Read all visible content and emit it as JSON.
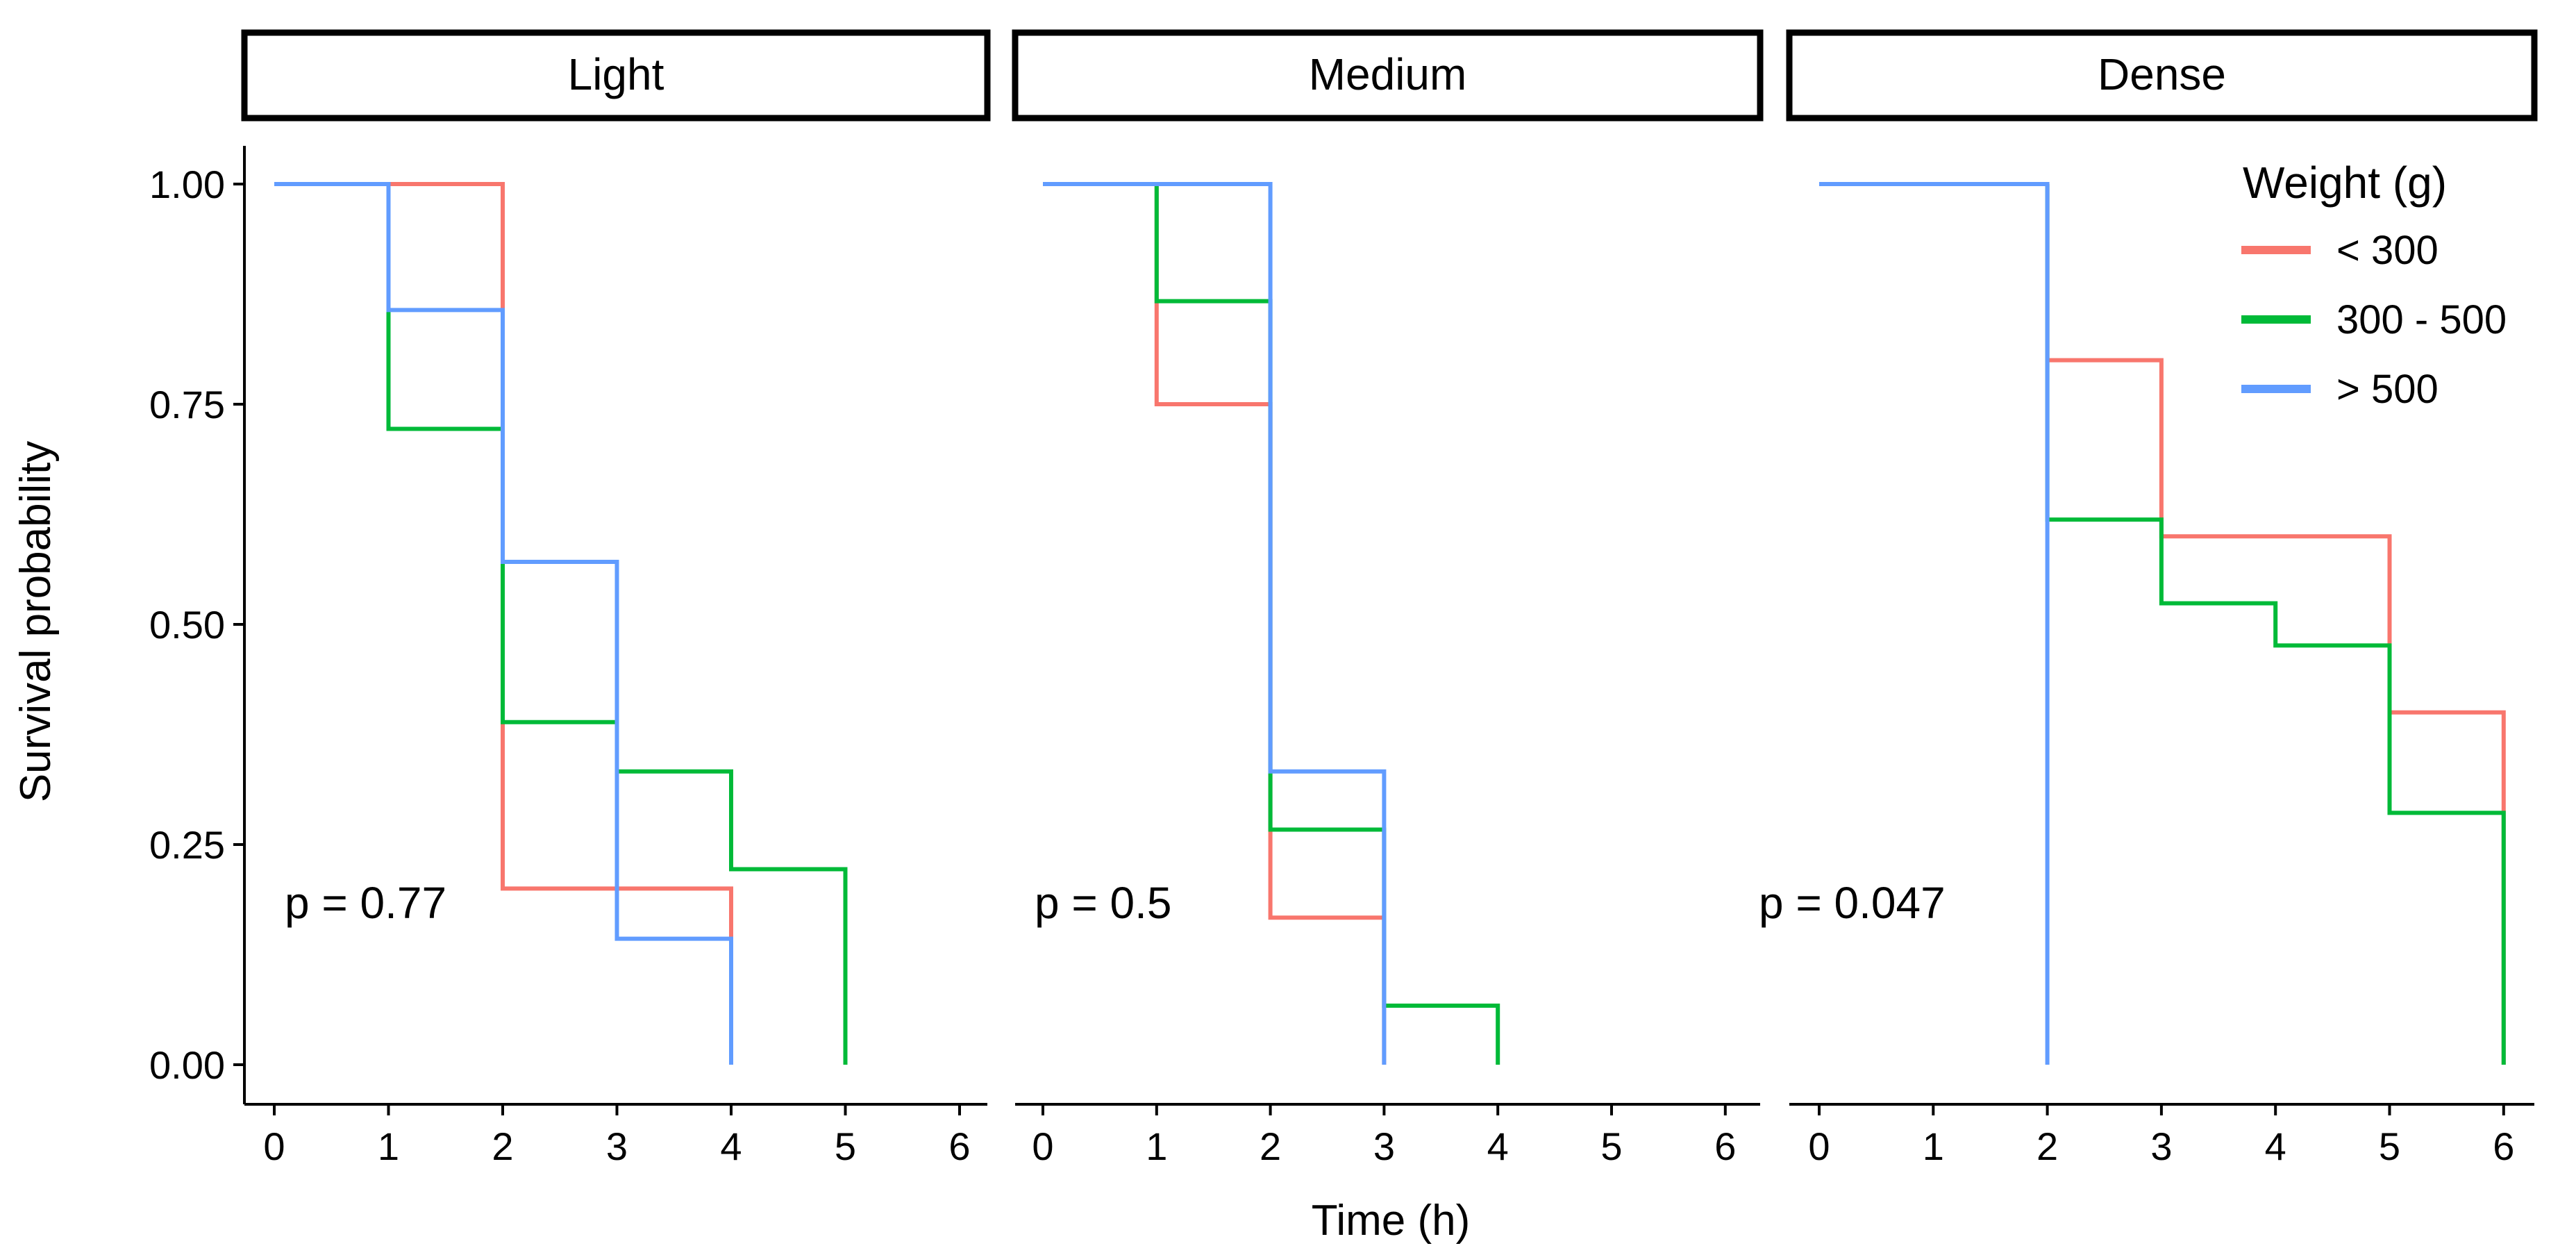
{
  "chart_data": {
    "type": "line",
    "subtype": "kaplan-meier step survival curves, faceted",
    "xlabel": "Time (h)",
    "ylabel": "Survival probability",
    "xlim": [
      0,
      6
    ],
    "ylim": [
      0,
      1
    ],
    "x_ticks": [
      "0",
      "1",
      "2",
      "3",
      "4",
      "5",
      "6"
    ],
    "y_ticks": [
      "0.00",
      "0.25",
      "0.50",
      "0.75",
      "1.00"
    ],
    "grid": false,
    "legend": {
      "title": "Weight (g)",
      "placement": "top-right",
      "entries": [
        {
          "label": "< 300",
          "color": "#F8766D"
        },
        {
          "label": "300 - 500",
          "color": "#00BA38"
        },
        {
          "label": "> 500",
          "color": "#619CFF"
        }
      ]
    },
    "panels": [
      {
        "strip": "Light",
        "p_value": "p = 0.77",
        "series": [
          {
            "name": "< 300",
            "color": "#F8766D",
            "x": [
              0,
              2,
              4
            ],
            "y": [
              1.0,
              0.2,
              0.0
            ]
          },
          {
            "name": "300 - 500",
            "color": "#00BA38",
            "x": [
              1,
              1,
              2,
              3,
              4,
              5
            ],
            "y": [
              1.0,
              0.722,
              0.389,
              0.333,
              0.222,
              0.0
            ]
          },
          {
            "name": "> 500",
            "color": "#619CFF",
            "x": [
              0,
              1,
              2,
              3,
              4
            ],
            "y": [
              1.0,
              0.857,
              0.571,
              0.143,
              0.0
            ]
          }
        ]
      },
      {
        "strip": "Medium",
        "p_value": "p = 0.5",
        "series": [
          {
            "name": "< 300",
            "color": "#F8766D",
            "x": [
              1,
              1,
              2,
              3
            ],
            "y": [
              1.0,
              0.75,
              0.167,
              0.0
            ]
          },
          {
            "name": "300 - 500",
            "color": "#00BA38",
            "x": [
              1,
              1,
              2,
              3,
              4
            ],
            "y": [
              1.0,
              0.867,
              0.267,
              0.067,
              0.0
            ]
          },
          {
            "name": "> 500",
            "color": "#619CFF",
            "x": [
              0,
              2,
              3
            ],
            "y": [
              1.0,
              0.333,
              0.0
            ]
          }
        ]
      },
      {
        "strip": "Dense",
        "p_value": "p = 0.047",
        "series": [
          {
            "name": "< 300",
            "color": "#F8766D",
            "x": [
              2,
              2,
              3,
              5,
              6
            ],
            "y": [
              1.0,
              0.8,
              0.6,
              0.4,
              0.0
            ]
          },
          {
            "name": "300 - 500",
            "color": "#00BA38",
            "x": [
              2,
              2,
              3,
              4,
              5,
              6
            ],
            "y": [
              1.0,
              0.619,
              0.524,
              0.476,
              0.286,
              0.0
            ]
          },
          {
            "name": "> 500",
            "color": "#619CFF",
            "x": [
              0,
              2
            ],
            "y": [
              1.0,
              0.0
            ]
          }
        ]
      }
    ]
  }
}
